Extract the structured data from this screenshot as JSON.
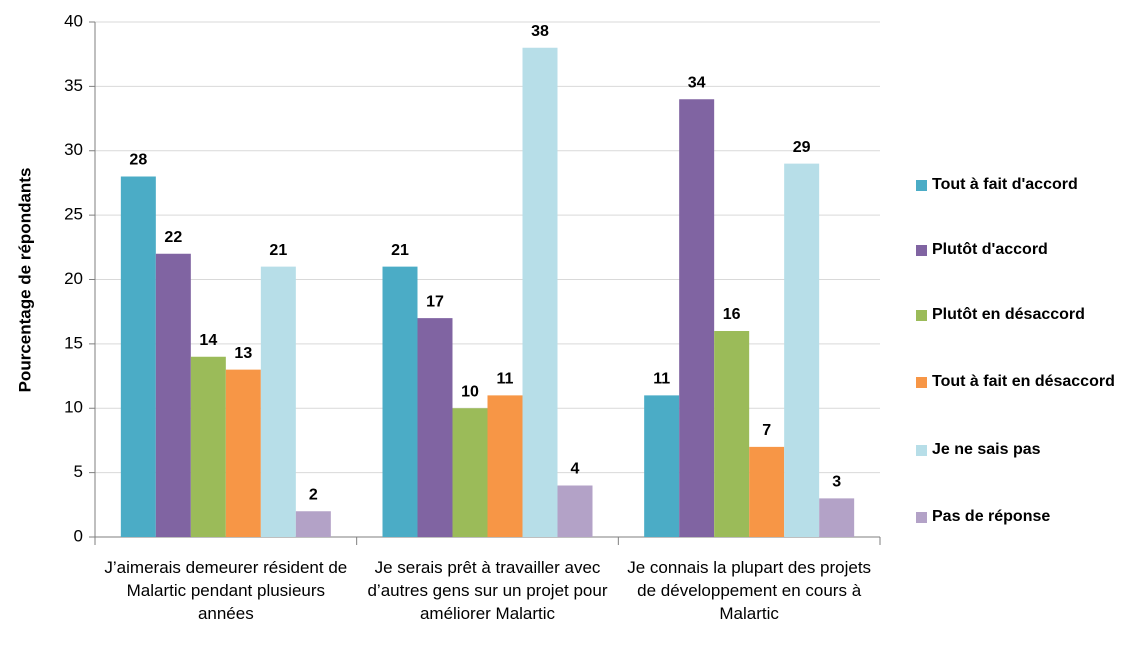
{
  "chart_data": {
    "type": "bar",
    "ylabel": "Pourcentage de répondants",
    "categories": [
      "J’aimerais demeurer résident de Malartic pendant plusieurs années",
      "Je serais prêt à travailler avec d’autres gens sur un projet pour améliorer Malartic",
      "Je connais la plupart des projets de développement en cours à Malartic"
    ],
    "series": [
      {
        "name": "Tout à fait d'accord",
        "color": "#4bacc6",
        "values": [
          28,
          21,
          11
        ]
      },
      {
        "name": "Plutôt d'accord",
        "color": "#8064a2",
        "values": [
          22,
          17,
          34
        ]
      },
      {
        "name": "Plutôt en désaccord",
        "color": "#9bbb59",
        "values": [
          14,
          10,
          16
        ]
      },
      {
        "name": "Tout à fait en désaccord",
        "color": "#f79646",
        "values": [
          13,
          11,
          7
        ]
      },
      {
        "name": "Je ne sais pas",
        "color": "#b7dee8",
        "values": [
          21,
          38,
          29
        ]
      },
      {
        "name": "Pas de réponse",
        "color": "#b3a2c7",
        "values": [
          2,
          4,
          3
        ]
      }
    ],
    "ylim": [
      0,
      40
    ],
    "yticks": [
      0,
      5,
      10,
      15,
      20,
      25,
      30,
      35,
      40
    ],
    "grid": true,
    "legend": "right"
  }
}
